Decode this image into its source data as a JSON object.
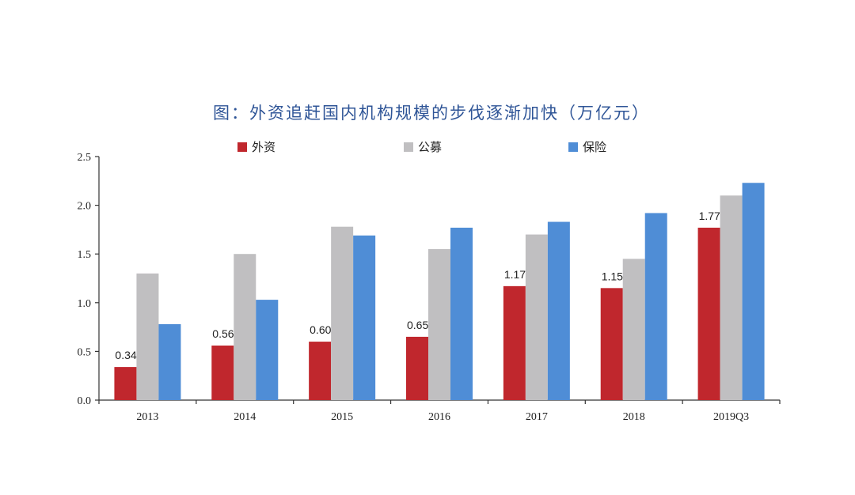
{
  "chart_data": {
    "type": "bar",
    "title": "图：外资追赶国内机构规模的步伐逐渐加快（万亿元）",
    "categories": [
      "2013",
      "2014",
      "2015",
      "2016",
      "2017",
      "2018",
      "2019Q3"
    ],
    "ylim": [
      0,
      2.5
    ],
    "yticks": [
      "0.0",
      "0.5",
      "1.0",
      "1.5",
      "2.0",
      "2.5"
    ],
    "legend_position": "top",
    "grid": false,
    "series": [
      {
        "name": "外资",
        "color": "#c0272d",
        "values": [
          0.34,
          0.56,
          0.6,
          0.65,
          1.17,
          1.15,
          1.77
        ],
        "labels": [
          "0.34",
          "0.56",
          "0.60",
          "0.65",
          "1.17",
          "1.15",
          "1.77"
        ]
      },
      {
        "name": "公募",
        "color": "#c0bfc1",
        "values": [
          1.3,
          1.5,
          1.78,
          1.55,
          1.7,
          1.45,
          2.1
        ]
      },
      {
        "name": "保险",
        "color": "#4f8dd6",
        "values": [
          0.78,
          1.03,
          1.69,
          1.77,
          1.83,
          1.92,
          2.23
        ]
      }
    ]
  }
}
